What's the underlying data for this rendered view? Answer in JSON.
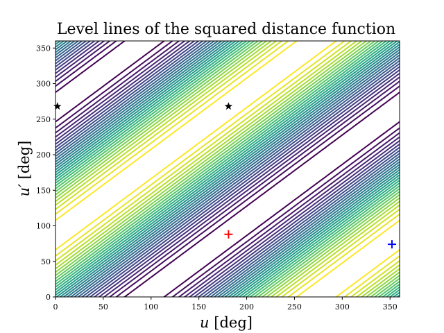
{
  "chart_data": {
    "type": "contour",
    "title": "Level lines of the squared distance function",
    "xlabel_var": "u",
    "xlabel_unit": " [deg]",
    "ylabel_var": "u′",
    "ylabel_unit": " [deg]",
    "xlim": [
      0,
      360
    ],
    "ylim": [
      0,
      360
    ],
    "xticks": [
      0,
      50,
      100,
      150,
      200,
      250,
      300,
      350
    ],
    "yticks": [
      0,
      50,
      100,
      150,
      200,
      250,
      300,
      350
    ],
    "colormap": "viridis",
    "grid": false,
    "levels": 30,
    "markers": [
      {
        "name": "global-minimum",
        "symbol": "plus",
        "color": "#ff0000",
        "x": 181,
        "y": 88
      },
      {
        "name": "second-minimum",
        "symbol": "plus",
        "color": "#0000ff",
        "x": 352,
        "y": 74
      },
      {
        "name": "saddle-left",
        "symbol": "star",
        "color": "#000000",
        "x": 2,
        "y": 268
      },
      {
        "name": "saddle-center",
        "symbol": "star",
        "color": "#000000",
        "x": 181,
        "y": 268
      }
    ]
  }
}
